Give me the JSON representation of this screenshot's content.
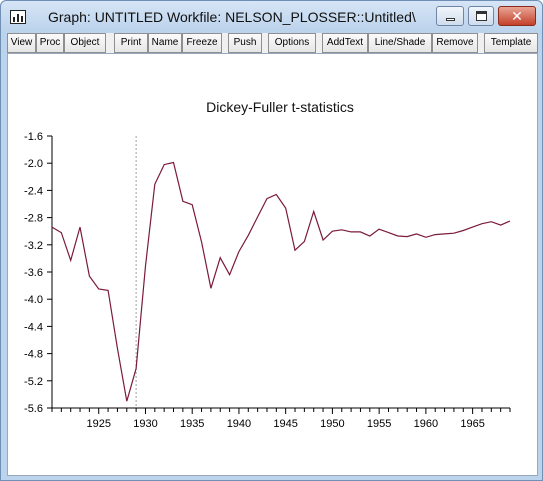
{
  "window": {
    "title": "Graph: UNTITLED    Workfile: NELSON_PLOSSER::Untitled\\",
    "close_glyph": "✕"
  },
  "toolbar": {
    "buttons": [
      "View",
      "Proc",
      "Object",
      "Print",
      "Name",
      "Freeze",
      "Push",
      "Options",
      "AddText",
      "Line/Shade",
      "Remove",
      "Template"
    ]
  },
  "icons": {
    "app": "graph-window-icon",
    "minimize": "minimize-icon",
    "maximize": "maximize-icon",
    "close": "close-icon"
  },
  "colors": {
    "line": "#7a1a3e",
    "shade_line": "#a0a0a0"
  },
  "chart_data": {
    "type": "line",
    "title": "Dickey-Fuller t-statistics",
    "x": [
      1920,
      1921,
      1922,
      1923,
      1924,
      1925,
      1926,
      1927,
      1928,
      1929,
      1930,
      1931,
      1932,
      1933,
      1934,
      1935,
      1936,
      1937,
      1938,
      1939,
      1940,
      1941,
      1942,
      1943,
      1944,
      1945,
      1946,
      1947,
      1948,
      1949,
      1950,
      1951,
      1952,
      1953,
      1954,
      1955,
      1956,
      1957,
      1958,
      1959,
      1960,
      1961,
      1962,
      1963,
      1964,
      1965,
      1966,
      1967,
      1968,
      1969
    ],
    "series": [
      {
        "values": [
          -2.94,
          -3.02,
          -3.43,
          -2.94,
          -3.66,
          -3.85,
          -3.87,
          -4.72,
          -5.5,
          -5.02,
          -3.51,
          -2.31,
          -2.02,
          -1.99,
          -2.56,
          -2.61,
          -3.16,
          -3.84,
          -3.39,
          -3.64,
          -3.3,
          -3.06,
          -2.79,
          -2.52,
          -2.46,
          -2.66,
          -3.28,
          -3.15,
          -2.71,
          -3.13,
          -3.0,
          -2.98,
          -3.01,
          -3.01,
          -3.07,
          -2.97,
          -3.02,
          -3.07,
          -3.08,
          -3.04,
          -3.09,
          -3.05,
          -3.04,
          -3.03,
          -2.99,
          -2.94,
          -2.89,
          -2.86,
          -2.91,
          -2.85
        ]
      }
    ],
    "xlim": [
      1920,
      1969
    ],
    "ylim": [
      -5.6,
      -1.6
    ],
    "xticks": [
      1925,
      1930,
      1935,
      1940,
      1945,
      1950,
      1955,
      1960,
      1965
    ],
    "yticks": [
      -1.6,
      -2.0,
      -2.4,
      -2.8,
      -3.2,
      -3.6,
      -4.0,
      -4.4,
      -4.8,
      -5.2,
      -5.6
    ],
    "ytick_labels": [
      "-1.6",
      "-2.0",
      "-2.4",
      "-2.8",
      "-3.2",
      "-3.6",
      "-4.0",
      "-4.4",
      "-4.8",
      "-5.2",
      "-5.6"
    ],
    "vline_x": 1929,
    "grid": false
  }
}
